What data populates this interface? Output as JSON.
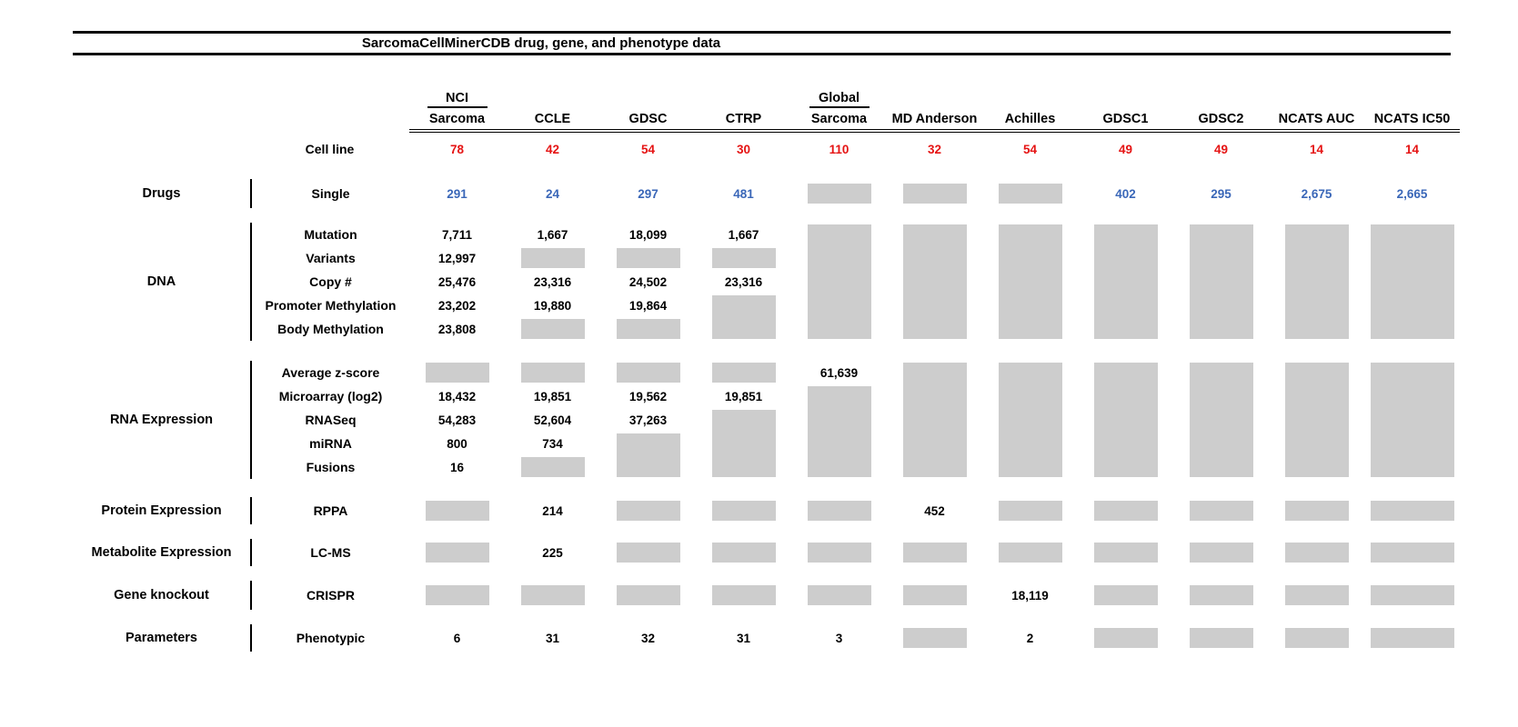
{
  "title": "SarcomaCellMinerCDB drug, gene, and phenotype data",
  "colors": {
    "red": "#e51313",
    "blue": "#3a67b8",
    "gray_box": "#cdcdcd",
    "text": "#000000"
  },
  "columns": [
    {
      "id": "nci-sarcoma",
      "top": "NCI",
      "label": "Sarcoma"
    },
    {
      "id": "ccle",
      "top": "",
      "label": "CCLE"
    },
    {
      "id": "gdsc",
      "top": "",
      "label": "GDSC"
    },
    {
      "id": "ctrp",
      "top": "",
      "label": "CTRP"
    },
    {
      "id": "global-sarcoma",
      "top": "Global",
      "label": "Sarcoma"
    },
    {
      "id": "md-anderson",
      "top": "",
      "label": "MD Anderson"
    },
    {
      "id": "achilles",
      "top": "",
      "label": "Achilles"
    },
    {
      "id": "gdsc1",
      "top": "",
      "label": "GDSC1"
    },
    {
      "id": "gdsc2",
      "top": "",
      "label": "GDSC2"
    },
    {
      "id": "ncats-auc",
      "top": "",
      "label": "NCATS AUC"
    },
    {
      "id": "ncats-ic50",
      "top": "",
      "label": "NCATS IC50"
    }
  ],
  "cell_line_row": {
    "label": "Cell line",
    "values": [
      "78",
      "42",
      "54",
      "30",
      "110",
      "32",
      "54",
      "49",
      "49",
      "14",
      "14"
    ]
  },
  "sections": [
    {
      "group": "Drugs",
      "rows": [
        {
          "label": "Single",
          "color": "blue",
          "cells": [
            "291",
            "24",
            "297",
            "481",
            {
              "gray": 1
            },
            {
              "gray": 1
            },
            {
              "gray": 1
            },
            "402",
            "295",
            "2,675",
            "2,665"
          ]
        }
      ]
    },
    {
      "group": "DNA",
      "rows": [
        {
          "label": "Mutation",
          "cells": [
            "7,711",
            "1,667",
            "18,099",
            "1,667",
            {
              "gray": 5
            },
            {
              "gray": 5
            },
            {
              "gray": 5
            },
            {
              "gray": 5
            },
            {
              "gray": 5
            },
            {
              "gray": 5
            },
            {
              "gray": 5
            }
          ]
        },
        {
          "label": "Variants",
          "cells": [
            "12,997",
            {
              "gray": 1
            },
            {
              "gray": 1
            },
            {
              "gray": 1
            },
            null,
            null,
            null,
            null,
            null,
            null,
            null
          ]
        },
        {
          "label": "Copy #",
          "cells": [
            "25,476",
            "23,316",
            "24,502",
            "23,316",
            null,
            null,
            null,
            null,
            null,
            null,
            null
          ]
        },
        {
          "label": "Promoter Methylation",
          "cells": [
            "23,202",
            "19,880",
            "19,864",
            {
              "gray": 2
            },
            null,
            null,
            null,
            null,
            null,
            null,
            null
          ]
        },
        {
          "label": "Body Methylation",
          "cells": [
            "23,808",
            {
              "gray": 1
            },
            {
              "gray": 1
            },
            null,
            null,
            null,
            null,
            null,
            null,
            null,
            null
          ]
        }
      ]
    },
    {
      "group": "RNA Expression",
      "rows": [
        {
          "label": "Average z-score",
          "cells": [
            {
              "gray": 1
            },
            {
              "gray": 1
            },
            {
              "gray": 1
            },
            {
              "gray": 1
            },
            "61,639",
            {
              "gray": 5
            },
            {
              "gray": 5
            },
            {
              "gray": 5
            },
            {
              "gray": 5
            },
            {
              "gray": 5
            },
            {
              "gray": 5
            }
          ]
        },
        {
          "label": "Microarray (log2)",
          "cells": [
            "18,432",
            "19,851",
            "19,562",
            "19,851",
            {
              "gray": 4
            },
            null,
            null,
            null,
            null,
            null,
            null
          ]
        },
        {
          "label": "RNASeq",
          "cells": [
            "54,283",
            "52,604",
            "37,263",
            {
              "gray": 3
            },
            null,
            null,
            null,
            null,
            null,
            null,
            null
          ]
        },
        {
          "label": "miRNA",
          "cells": [
            "800",
            "734",
            {
              "gray": 2
            },
            null,
            null,
            null,
            null,
            null,
            null,
            null,
            null
          ]
        },
        {
          "label": "Fusions",
          "cells": [
            "16",
            {
              "gray": 1
            },
            null,
            null,
            null,
            null,
            null,
            null,
            null,
            null,
            null
          ]
        }
      ]
    },
    {
      "group": "Protein Expression",
      "rows": [
        {
          "label": "RPPA",
          "cells": [
            {
              "gray": 1
            },
            "214",
            {
              "gray": 1
            },
            {
              "gray": 1
            },
            {
              "gray": 1
            },
            "452",
            {
              "gray": 1
            },
            {
              "gray": 1
            },
            {
              "gray": 1
            },
            {
              "gray": 1
            },
            {
              "gray": 1
            }
          ]
        }
      ]
    },
    {
      "group": "Metabolite Expression",
      "rows": [
        {
          "label": "LC-MS",
          "cells": [
            {
              "gray": 1
            },
            "225",
            {
              "gray": 1
            },
            {
              "gray": 1
            },
            {
              "gray": 1
            },
            {
              "gray": 1
            },
            {
              "gray": 1
            },
            {
              "gray": 1
            },
            {
              "gray": 1
            },
            {
              "gray": 1
            },
            {
              "gray": 1
            }
          ]
        }
      ]
    },
    {
      "group": "Gene knockout",
      "rows": [
        {
          "label": "CRISPR",
          "cells": [
            {
              "gray": 1
            },
            {
              "gray": 1
            },
            {
              "gray": 1
            },
            {
              "gray": 1
            },
            {
              "gray": 1
            },
            {
              "gray": 1
            },
            "18,119",
            {
              "gray": 1
            },
            {
              "gray": 1
            },
            {
              "gray": 1
            },
            {
              "gray": 1
            }
          ]
        }
      ]
    },
    {
      "group": "Parameters",
      "rows": [
        {
          "label": "Phenotypic",
          "cells": [
            "6",
            "31",
            "32",
            "31",
            "3",
            {
              "gray": 1
            },
            "2",
            {
              "gray": 1
            },
            {
              "gray": 1
            },
            {
              "gray": 1
            },
            {
              "gray": 1
            }
          ]
        }
      ]
    }
  ],
  "chart_data": {
    "type": "table",
    "title": "SarcomaCellMinerCDB drug, gene, and phenotype data",
    "columns": [
      "NCI Sarcoma",
      "CCLE",
      "GDSC",
      "CTRP",
      "Global Sarcoma",
      "MD Anderson",
      "Achilles",
      "GDSC1",
      "GDSC2",
      "NCATS AUC",
      "NCATS IC50"
    ],
    "notes": "null = gray box (data not available); Cell line counts shown in red; drug counts shown in blue",
    "rows": [
      {
        "group": "",
        "label": "Cell line",
        "values": [
          78,
          42,
          54,
          30,
          110,
          32,
          54,
          49,
          49,
          14,
          14
        ]
      },
      {
        "group": "Drugs",
        "label": "Single",
        "values": [
          291,
          24,
          297,
          481,
          null,
          null,
          null,
          402,
          295,
          2675,
          2665
        ]
      },
      {
        "group": "DNA",
        "label": "Mutation",
        "values": [
          7711,
          1667,
          18099,
          1667,
          null,
          null,
          null,
          null,
          null,
          null,
          null
        ]
      },
      {
        "group": "DNA",
        "label": "Variants",
        "values": [
          12997,
          null,
          null,
          null,
          null,
          null,
          null,
          null,
          null,
          null,
          null
        ]
      },
      {
        "group": "DNA",
        "label": "Copy #",
        "values": [
          25476,
          23316,
          24502,
          23316,
          null,
          null,
          null,
          null,
          null,
          null,
          null
        ]
      },
      {
        "group": "DNA",
        "label": "Promoter Methylation",
        "values": [
          23202,
          19880,
          19864,
          null,
          null,
          null,
          null,
          null,
          null,
          null,
          null
        ]
      },
      {
        "group": "DNA",
        "label": "Body Methylation",
        "values": [
          23808,
          null,
          null,
          null,
          null,
          null,
          null,
          null,
          null,
          null,
          null
        ]
      },
      {
        "group": "RNA Expression",
        "label": "Average z-score",
        "values": [
          null,
          null,
          null,
          null,
          61639,
          null,
          null,
          null,
          null,
          null,
          null
        ]
      },
      {
        "group": "RNA Expression",
        "label": "Microarray (log2)",
        "values": [
          18432,
          19851,
          19562,
          19851,
          null,
          null,
          null,
          null,
          null,
          null,
          null
        ]
      },
      {
        "group": "RNA Expression",
        "label": "RNASeq",
        "values": [
          54283,
          52604,
          37263,
          null,
          null,
          null,
          null,
          null,
          null,
          null,
          null
        ]
      },
      {
        "group": "RNA Expression",
        "label": "miRNA",
        "values": [
          800,
          734,
          null,
          null,
          null,
          null,
          null,
          null,
          null,
          null,
          null
        ]
      },
      {
        "group": "RNA Expression",
        "label": "Fusions",
        "values": [
          16,
          null,
          null,
          null,
          null,
          null,
          null,
          null,
          null,
          null,
          null
        ]
      },
      {
        "group": "Protein Expression",
        "label": "RPPA",
        "values": [
          null,
          214,
          null,
          null,
          null,
          452,
          null,
          null,
          null,
          null,
          null
        ]
      },
      {
        "group": "Metabolite Expression",
        "label": "LC-MS",
        "values": [
          null,
          225,
          null,
          null,
          null,
          null,
          null,
          null,
          null,
          null,
          null
        ]
      },
      {
        "group": "Gene knockout",
        "label": "CRISPR",
        "values": [
          null,
          null,
          null,
          null,
          null,
          null,
          18119,
          null,
          null,
          null,
          null
        ]
      },
      {
        "group": "Parameters",
        "label": "Phenotypic",
        "values": [
          6,
          31,
          32,
          31,
          3,
          null,
          2,
          null,
          null,
          null,
          null
        ]
      }
    ]
  }
}
